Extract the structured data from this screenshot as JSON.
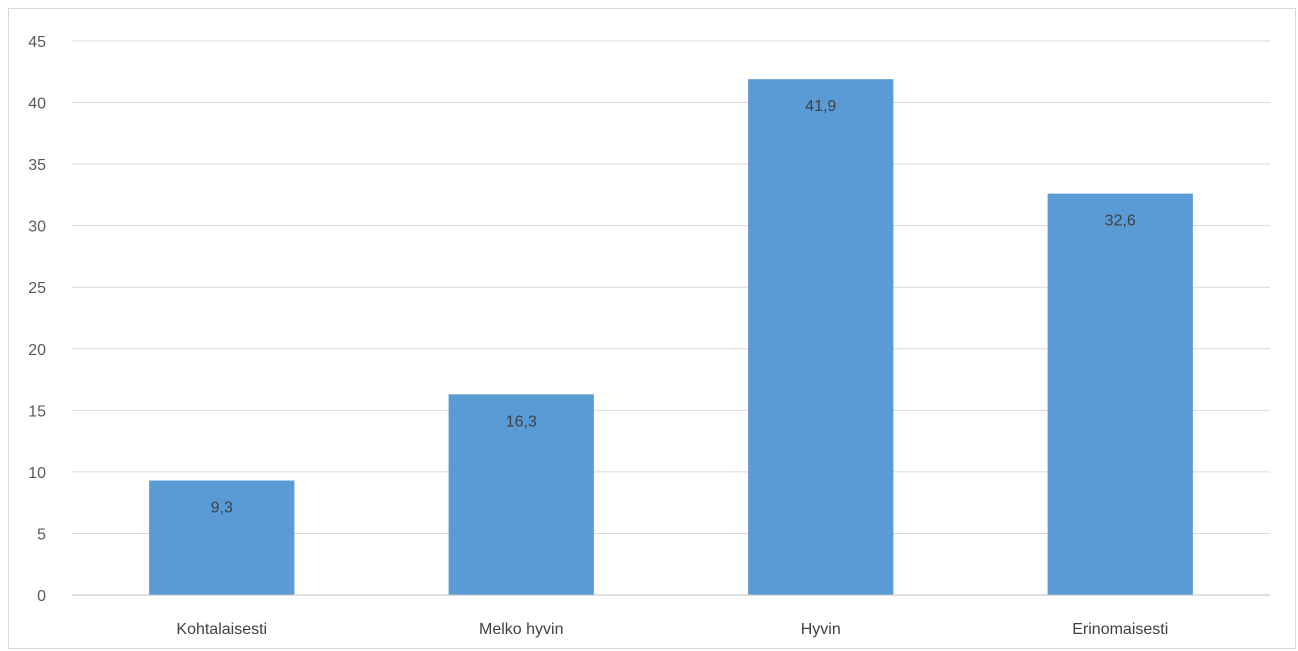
{
  "chart_data": {
    "type": "bar",
    "title": "",
    "xlabel": "",
    "ylabel": "",
    "categories": [
      "Kohtalaisesti",
      "Melko hyvin",
      "Hyvin",
      "Erinomaisesti"
    ],
    "values": [
      9.3,
      16.3,
      41.9,
      32.6
    ],
    "data_labels": [
      "9,3",
      "16,3",
      "41,9",
      "32,6"
    ],
    "y_ticks": [
      0,
      5,
      10,
      15,
      20,
      25,
      30,
      35,
      40,
      45
    ],
    "y_tick_labels": [
      "0",
      "5",
      "10",
      "15",
      "20",
      "25",
      "30",
      "35",
      "40",
      "45"
    ],
    "ylim": [
      0,
      45
    ],
    "grid": true,
    "legend": "none",
    "colors": {
      "bar": "#5b9bd5",
      "grid": "#d9d9d9",
      "axis": "#bfbfbf"
    }
  }
}
